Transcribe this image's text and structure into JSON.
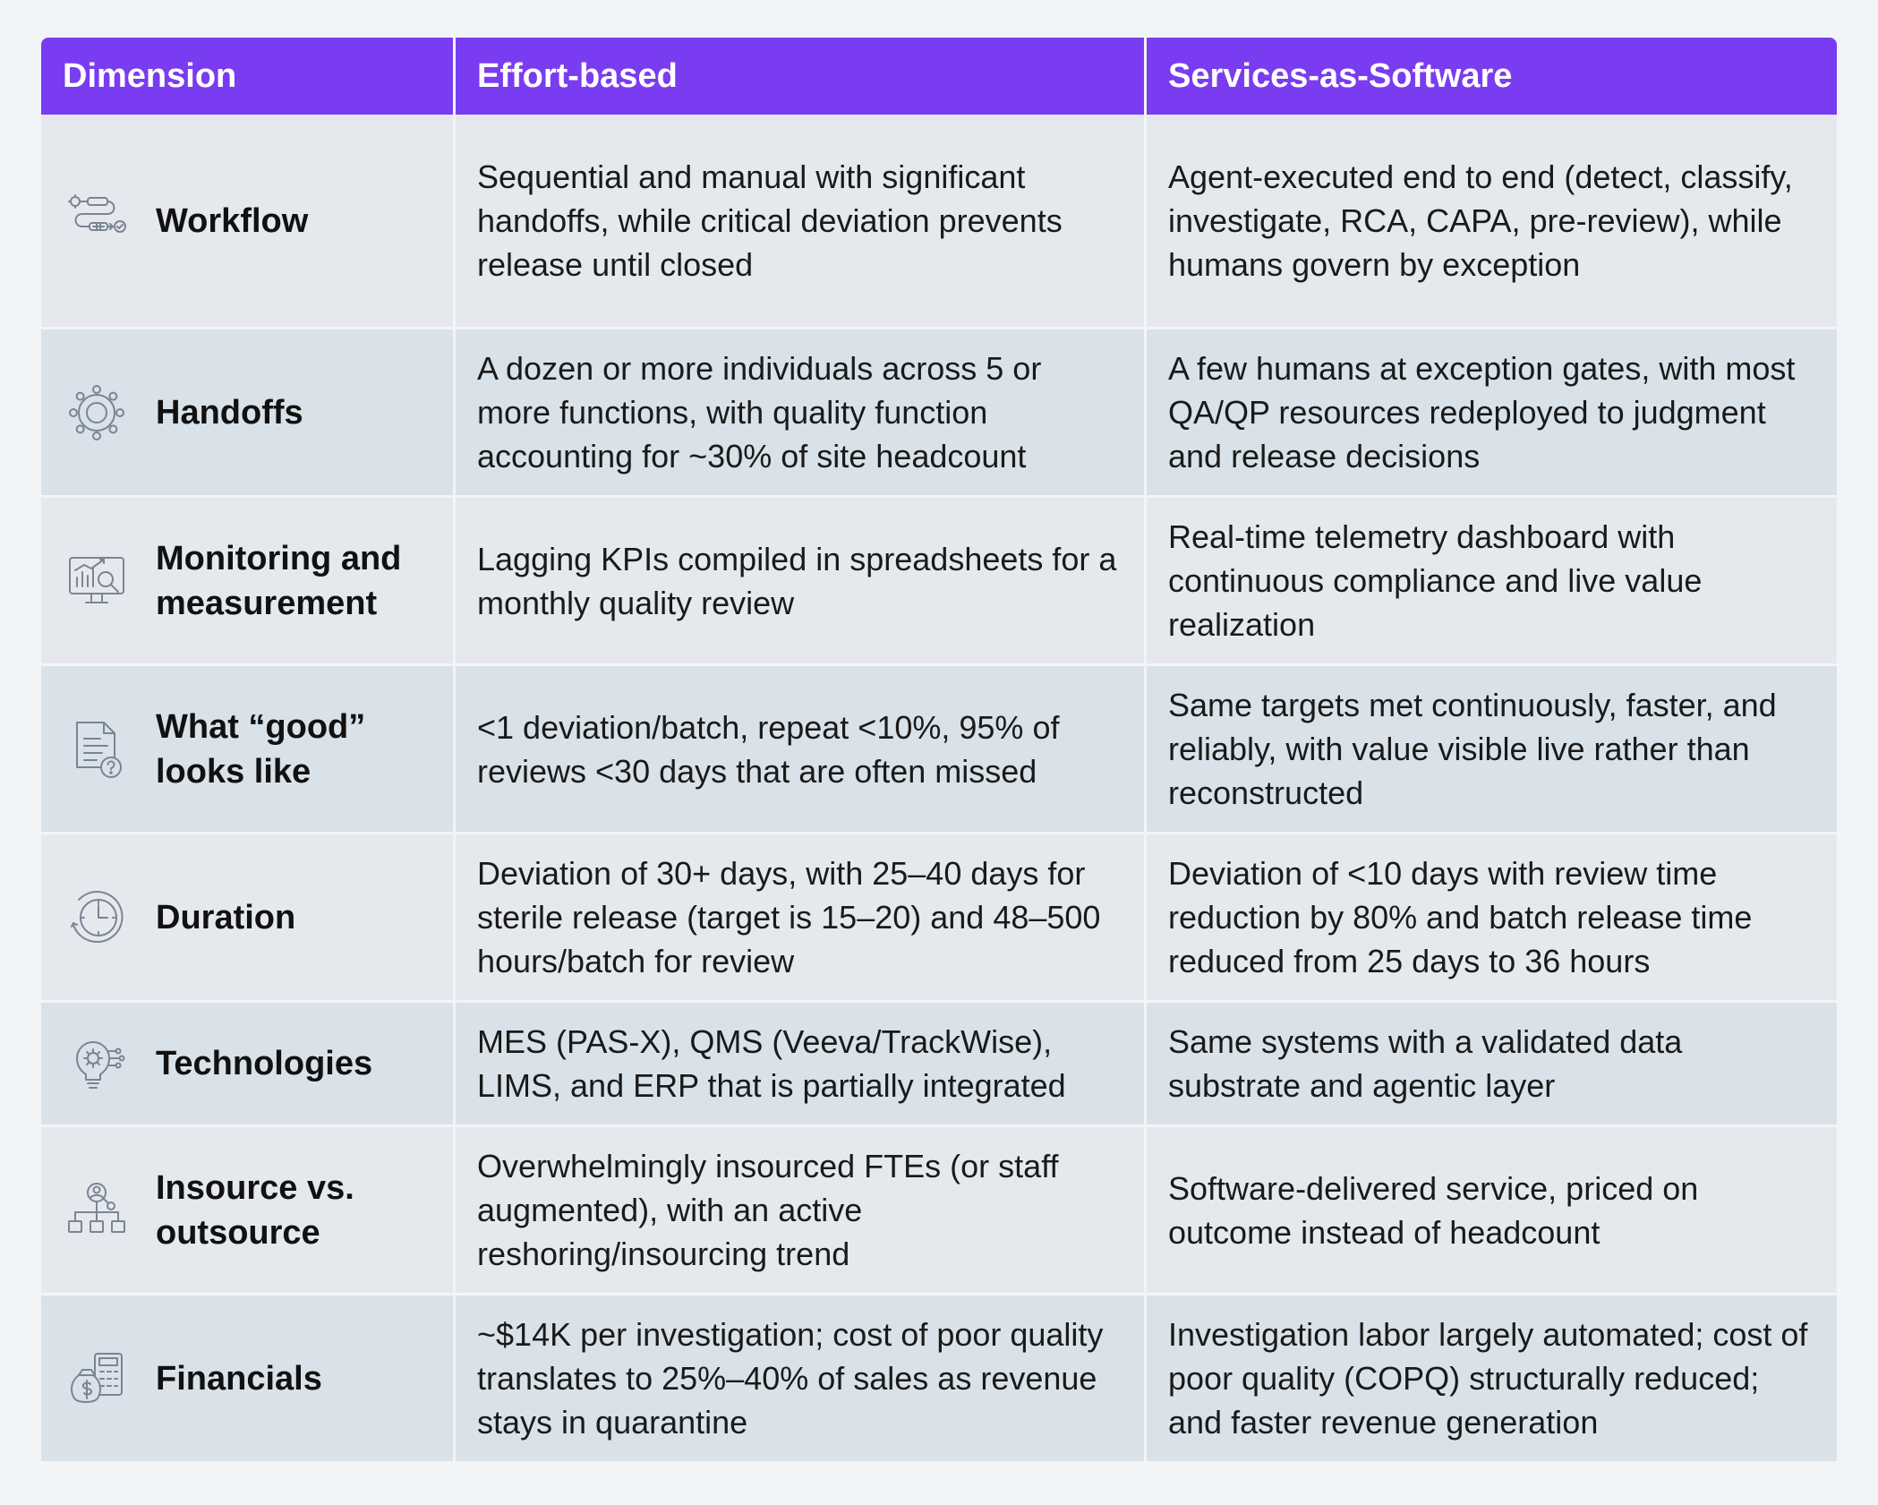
{
  "header": {
    "col1": "Dimension",
    "col2": "Effort-based",
    "col3": "Services-as-Software"
  },
  "rows": [
    {
      "icon": "workflow-icon",
      "dimension": "Workflow",
      "effort": "Sequential and manual with significant handoffs, while critical deviation prevents release until closed",
      "saas": "Agent-executed end to end (detect, classify, investigate, RCA, CAPA, pre-review), while humans govern by exception"
    },
    {
      "icon": "handoffs-icon",
      "dimension": "Handoffs",
      "effort": "A dozen or more individuals across 5 or more functions, with quality function accounting for ~30% of site headcount",
      "saas": "A few humans at exception gates, with most QA/QP resources redeployed to judgment and release decisions"
    },
    {
      "icon": "monitoring-icon",
      "dimension": "Monitoring and measurement",
      "effort": "Lagging KPIs compiled in spreadsheets for a monthly quality review",
      "saas": "Real-time telemetry dashboard with continuous compliance and live value realization"
    },
    {
      "icon": "document-question-icon",
      "dimension": "What “good” looks like",
      "effort": "<1 deviation/batch, repeat <10%, 95% of reviews <30 days that are often missed",
      "saas": "Same targets met continuously, faster, and reliably, with value visible live rather than reconstructed"
    },
    {
      "icon": "clock-icon",
      "dimension": "Duration",
      "effort": "Deviation of 30+ days, with 25–40 days for sterile release (target is 15–20) and 48–500 hours/batch for review",
      "saas": "Deviation of <10 days with review time reduction by 80% and batch release time reduced from 25 days to 36 hours"
    },
    {
      "icon": "lightbulb-gear-icon",
      "dimension": "Technologies",
      "effort": "MES (PAS-X), QMS (Veeva/TrackWise), LIMS, and ERP that is partially integrated",
      "saas": "Same systems with a validated data substrate and agentic layer"
    },
    {
      "icon": "org-chart-icon",
      "dimension": "Insource vs. outsource",
      "effort": "Overwhelmingly insourced FTEs (or staff augmented), with an active reshoring/insourcing trend",
      "saas": "Software-delivered service, priced on outcome instead of headcount"
    },
    {
      "icon": "money-calculator-icon",
      "dimension": "Financials",
      "effort": "~$14K per investigation; cost of poor quality translates to 25%–40% of sales as revenue stays in quarantine",
      "saas": "Investigation labor largely automated; cost of poor quality (COPQ) structurally reduced; and faster revenue generation"
    }
  ]
}
